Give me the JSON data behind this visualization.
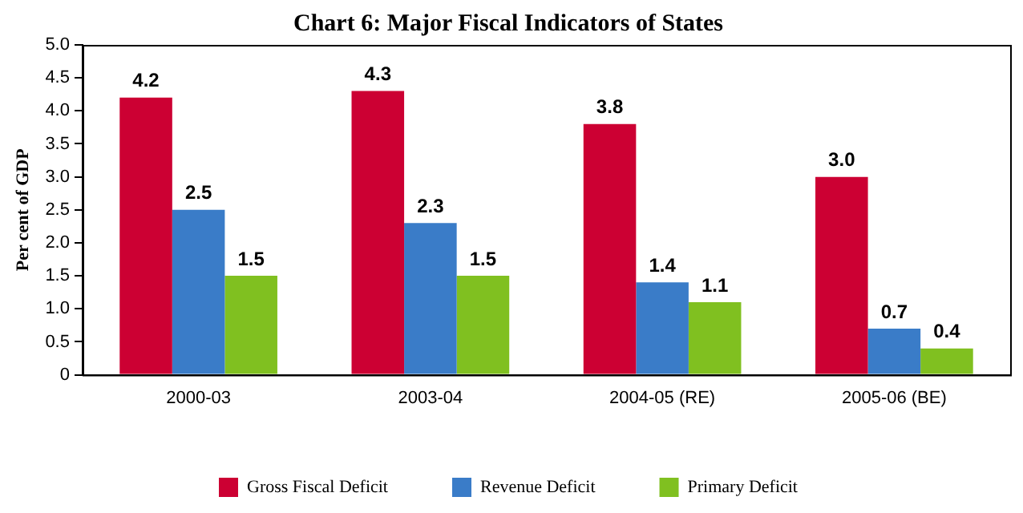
{
  "chart_data": {
    "type": "bar",
    "title": "Chart 6: Major Fiscal Indicators of States",
    "ylabel": "Per cent of GDP",
    "categories": [
      "2000-03",
      "2003-04",
      "2004-05 (RE)",
      "2005-06 (BE)"
    ],
    "series": [
      {
        "name": "Gross Fiscal Deficit",
        "color": "#cc0033",
        "values": [
          4.2,
          4.3,
          3.8,
          3.0
        ],
        "value_labels": [
          "4.2",
          "4.3",
          "3.8",
          "3.0"
        ]
      },
      {
        "name": "Revenue Deficit",
        "color": "#3a7cc8",
        "values": [
          2.5,
          2.3,
          1.4,
          0.7
        ],
        "value_labels": [
          "2.5",
          "2.3",
          "1.4",
          "0.7"
        ]
      },
      {
        "name": "Primary Deficit",
        "color": "#80c020",
        "values": [
          1.5,
          1.5,
          1.1,
          0.4
        ],
        "value_labels": [
          "1.5",
          "1.5",
          "1.1",
          "0.4"
        ]
      }
    ],
    "ylim": [
      0,
      5
    ],
    "yticks": [
      0,
      {
        "value": 0.5,
        "label": "0.5"
      },
      {
        "value": 1,
        "label": "1.0"
      },
      {
        "value": 1.5,
        "label": "1.5"
      },
      {
        "value": 2,
        "label": "2.0"
      },
      {
        "value": 2.5,
        "label": "2.5"
      },
      {
        "value": 3,
        "label": "3.0"
      },
      {
        "value": 3.5,
        "label": "3.5"
      },
      {
        "value": 4,
        "label": "4.0"
      },
      {
        "value": 4.5,
        "label": "4.5"
      },
      {
        "value": 5,
        "label": "5.0"
      }
    ],
    "grid": false,
    "legend": "bottom"
  }
}
